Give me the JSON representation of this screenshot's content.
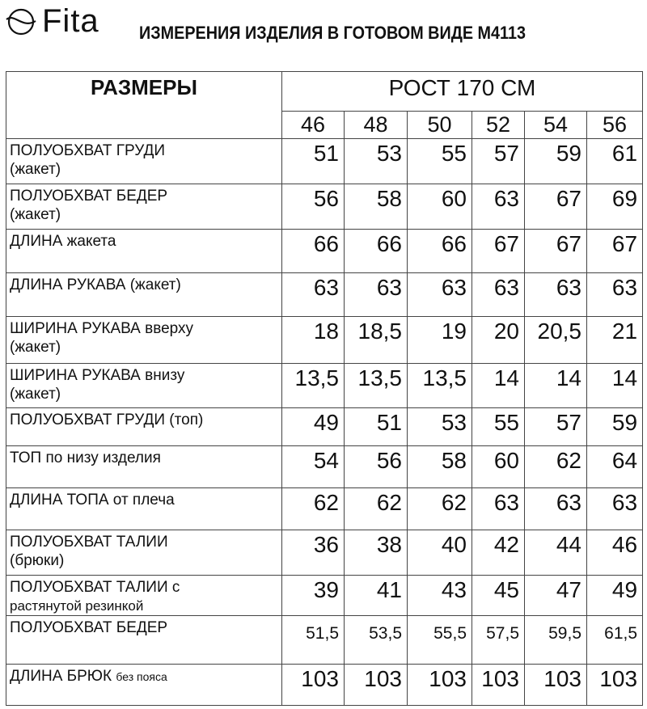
{
  "header": {
    "logo": "Fita",
    "title": "ИЗМЕРЕНИЯ ИЗДЕЛИЯ В ГОТОВОМ ВИДЕ М4113"
  },
  "table": {
    "sizes_label": "РАЗМЕРЫ",
    "height_label": "РОСТ 170 СМ",
    "sizes": [
      "46",
      "48",
      "50",
      "52",
      "54",
      "56"
    ],
    "rows": [
      {
        "label": "ПОЛУОБХВАТ ГРУДИ",
        "sub": "(жакет)",
        "values": [
          "51",
          "53",
          "55",
          "57",
          "59",
          "61"
        ]
      },
      {
        "label": "ПОЛУОБХВАТ БЕДЕР",
        "sub": "(жакет)",
        "values": [
          "56",
          "58",
          "60",
          "63",
          "67",
          "69"
        ]
      },
      {
        "label": "ДЛИНА жакета",
        "sub": "",
        "values": [
          "66",
          "66",
          "66",
          "67",
          "67",
          "67"
        ]
      },
      {
        "label": "ДЛИНА РУКАВА (жакет)",
        "sub": "",
        "values": [
          "63",
          "63",
          "63",
          "63",
          "63",
          "63"
        ]
      },
      {
        "label": "ШИРИНА РУКАВА вверху",
        "sub": "(жакет)",
        "values": [
          "18",
          "18,5",
          "19",
          "20",
          "20,5",
          "21"
        ]
      },
      {
        "label": "ШИРИНА РУКАВА внизу",
        "sub": "(жакет)",
        "values": [
          "13,5",
          "13,5",
          "13,5",
          "14",
          "14",
          "14"
        ]
      },
      {
        "label": "ПОЛУОБХВАТ ГРУДИ (топ)",
        "sub": "",
        "values": [
          "49",
          "51",
          "53",
          "55",
          "57",
          "59"
        ]
      },
      {
        "label": "ТОП по низу изделия",
        "sub": "",
        "values": [
          "54",
          "56",
          "58",
          "60",
          "62",
          "64"
        ]
      },
      {
        "label": "ДЛИНА ТОПА от плеча",
        "sub": "",
        "values": [
          "62",
          "62",
          "62",
          "63",
          "63",
          "63"
        ]
      },
      {
        "label": "ПОЛУОБХВАТ ТАЛИИ",
        "sub": "(брюки)",
        "values": [
          "36",
          "38",
          "40",
          "42",
          "44",
          "46"
        ]
      },
      {
        "label": "ПОЛУОБХВАТ ТАЛИИ с",
        "sub": "растянутой резинкой",
        "values": [
          "39",
          "41",
          "43",
          "45",
          "47",
          "49"
        ]
      },
      {
        "label": "ПОЛУОБХВАТ БЕДЕР",
        "sub": "",
        "values": [
          "51,5",
          "53,5",
          "55,5",
          "57,5",
          "59,5",
          "61,5"
        ]
      },
      {
        "label": "ДЛИНА БРЮК",
        "sub": "без пояса",
        "values": [
          "103",
          "103",
          "103",
          "103",
          "103",
          "103"
        ]
      }
    ]
  }
}
